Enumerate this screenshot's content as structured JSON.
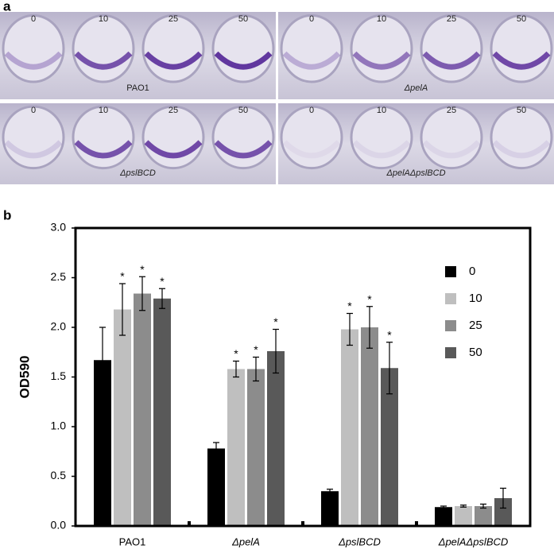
{
  "figure": {
    "panel_a_label": "a",
    "panel_b_label": "b",
    "photos": [
      {
        "strain": "PAO1",
        "concentrations": [
          "0",
          "10",
          "25",
          "50"
        ]
      },
      {
        "strain": "ΔpelA",
        "concentrations": [
          "0",
          "10",
          "25",
          "50"
        ]
      },
      {
        "strain": "ΔpslBCD",
        "concentrations": [
          "0",
          "10",
          "25",
          "50"
        ]
      },
      {
        "strain": "ΔpelAΔpslBCD",
        "concentrations": [
          "0",
          "10",
          "25",
          "50"
        ]
      }
    ]
  },
  "chart_data": {
    "type": "bar",
    "ylabel": "OD590",
    "categories": [
      "PAO1",
      "ΔpelA",
      "ΔpslBCD",
      "ΔpelAΔpslBCD"
    ],
    "ylim": [
      0,
      3
    ],
    "yticks": [
      {
        "value": 0,
        "label": "0.0"
      },
      {
        "value": 0.5,
        "label": "0.5"
      },
      {
        "value": 1,
        "label": "1.0"
      },
      {
        "value": 1.5,
        "label": "1.5"
      },
      {
        "value": 2,
        "label": "2.0"
      },
      {
        "value": 2.5,
        "label": "2.5"
      },
      {
        "value": 3,
        "label": "3.0"
      }
    ],
    "series": [
      {
        "name": "0",
        "color": "#000000",
        "values": [
          1.67,
          0.78,
          0.35,
          0.19
        ],
        "errors": [
          0.33,
          0.06,
          0.02,
          0.01
        ]
      },
      {
        "name": "10",
        "color": "#bfbfbf",
        "values": [
          2.18,
          1.58,
          1.98,
          0.2
        ],
        "errors": [
          0.26,
          0.08,
          0.16,
          0.01
        ],
        "markers": [
          "*",
          "*",
          "*",
          null
        ]
      },
      {
        "name": "25",
        "color": "#8c8c8c",
        "values": [
          2.34,
          1.58,
          2.0,
          0.2
        ],
        "errors": [
          0.17,
          0.12,
          0.21,
          0.02
        ],
        "markers": [
          "*",
          "*",
          "*",
          null
        ]
      },
      {
        "name": "50",
        "color": "#595959",
        "values": [
          2.29,
          1.76,
          1.59,
          0.28
        ],
        "errors": [
          0.1,
          0.22,
          0.26,
          0.1
        ],
        "markers": [
          "*",
          "*",
          "*",
          null
        ]
      }
    ],
    "legend": "upper right"
  }
}
